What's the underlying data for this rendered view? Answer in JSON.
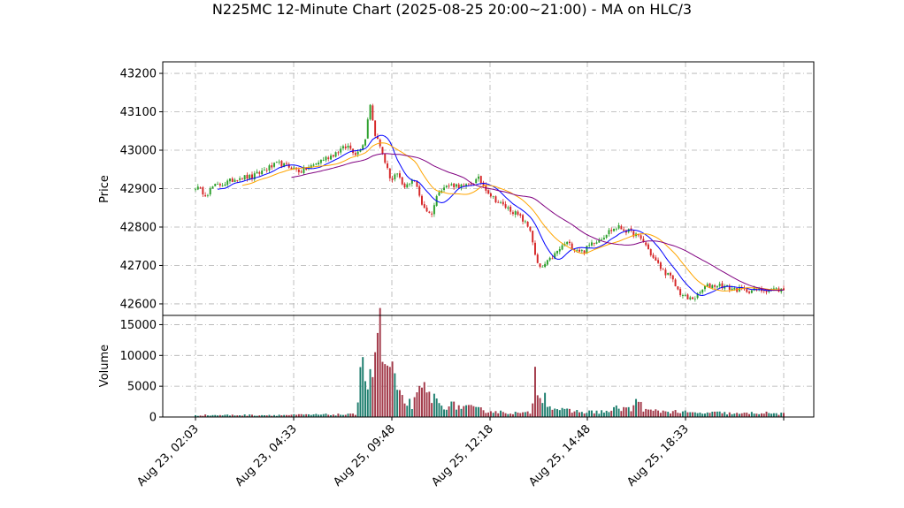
{
  "chart_data": {
    "type": "candlestick",
    "title": "N225MC 12-Minute Chart (2025-08-25 20:00~21:00) - MA on HLC/3",
    "xlabel": "",
    "price_panel": {
      "ylabel": "Price",
      "ylim": [
        42570,
        43230
      ],
      "yticks": [
        42600,
        42700,
        42800,
        42900,
        43000,
        43100,
        43200
      ],
      "ytick_labels": [
        "42600",
        "42700",
        "42800",
        "42900",
        "43000",
        "43100",
        "43200"
      ]
    },
    "volume_panel": {
      "ylabel": "Volume",
      "ylim": [
        0,
        16500
      ],
      "yticks": [
        0,
        5000,
        10000,
        15000
      ],
      "ytick_labels": [
        "0",
        "5000",
        "10000",
        "15000"
      ]
    },
    "x_tick_labels": [
      "Aug 23, 02:03",
      "Aug 23, 04:33",
      "Aug 25, 09:48",
      "Aug 25, 12:18",
      "Aug 25, 14:48",
      "Aug 25, 18:33"
    ],
    "grid": true,
    "colors": {
      "up": "#2ca02c",
      "down": "#d62728",
      "volume_up": "#1f7f6f",
      "volume_down": "#a33a4a",
      "ma_short": "#0000ff",
      "ma_mid": "#ffa500",
      "ma_long": "#800080"
    },
    "n_bars": 240,
    "price_path": [
      [
        0,
        42905
      ],
      [
        5,
        42885
      ],
      [
        8,
        42905
      ],
      [
        14,
        42915
      ],
      [
        20,
        42930
      ],
      [
        26,
        42930
      ],
      [
        32,
        42950
      ],
      [
        38,
        42965
      ],
      [
        44,
        42955
      ],
      [
        48,
        42945
      ],
      [
        54,
        42960
      ],
      [
        58,
        42975
      ],
      [
        62,
        42985
      ],
      [
        66,
        43000
      ],
      [
        70,
        43010
      ],
      [
        74,
        42990
      ],
      [
        78,
        43030
      ],
      [
        80,
        43130
      ],
      [
        82,
        43050
      ],
      [
        84,
        43020
      ],
      [
        86,
        42990
      ],
      [
        88,
        42950
      ],
      [
        90,
        42920
      ],
      [
        92,
        42940
      ],
      [
        96,
        42900
      ],
      [
        100,
        42930
      ],
      [
        104,
        42860
      ],
      [
        108,
        42830
      ],
      [
        112,
        42900
      ],
      [
        118,
        42910
      ],
      [
        124,
        42905
      ],
      [
        130,
        42925
      ],
      [
        136,
        42880
      ],
      [
        140,
        42860
      ],
      [
        146,
        42840
      ],
      [
        150,
        42820
      ],
      [
        154,
        42790
      ],
      [
        156,
        42720
      ],
      [
        158,
        42690
      ],
      [
        162,
        42710
      ],
      [
        166,
        42735
      ],
      [
        170,
        42760
      ],
      [
        174,
        42745
      ],
      [
        178,
        42735
      ],
      [
        182,
        42760
      ],
      [
        186,
        42770
      ],
      [
        190,
        42790
      ],
      [
        194,
        42800
      ],
      [
        198,
        42790
      ],
      [
        202,
        42780
      ],
      [
        206,
        42760
      ],
      [
        210,
        42720
      ],
      [
        214,
        42690
      ],
      [
        218,
        42670
      ],
      [
        222,
        42630
      ],
      [
        226,
        42612
      ],
      [
        230,
        42618
      ],
      [
        234,
        42645
      ],
      [
        240,
        42650
      ],
      [
        246,
        42640
      ],
      [
        252,
        42635
      ],
      [
        258,
        42635
      ],
      [
        264,
        42638
      ],
      [
        270,
        42636
      ]
    ],
    "volume_path": [
      [
        0,
        300
      ],
      [
        40,
        320
      ],
      [
        62,
        400
      ],
      [
        74,
        400
      ],
      [
        76,
        12500
      ],
      [
        78,
        6500
      ],
      [
        80,
        5500
      ],
      [
        82,
        9000
      ],
      [
        84,
        16000
      ],
      [
        86,
        9000
      ],
      [
        88,
        7500
      ],
      [
        90,
        8500
      ],
      [
        92,
        4200
      ],
      [
        94,
        3000
      ],
      [
        96,
        2600
      ],
      [
        100,
        2000
      ],
      [
        104,
        4500
      ],
      [
        108,
        3500
      ],
      [
        112,
        2000
      ],
      [
        120,
        1800
      ],
      [
        130,
        1200
      ],
      [
        140,
        800
      ],
      [
        150,
        600
      ],
      [
        154,
        700
      ],
      [
        156,
        7200
      ],
      [
        158,
        4000
      ],
      [
        160,
        3500
      ],
      [
        164,
        1500
      ],
      [
        170,
        1000
      ],
      [
        180,
        800
      ],
      [
        190,
        900
      ],
      [
        194,
        1500
      ],
      [
        198,
        1400
      ],
      [
        200,
        1100
      ],
      [
        204,
        3200
      ],
      [
        206,
        1000
      ],
      [
        220,
        900
      ],
      [
        230,
        600
      ],
      [
        240,
        700
      ],
      [
        250,
        500
      ],
      [
        258,
        700
      ],
      [
        270,
        500
      ]
    ]
  }
}
